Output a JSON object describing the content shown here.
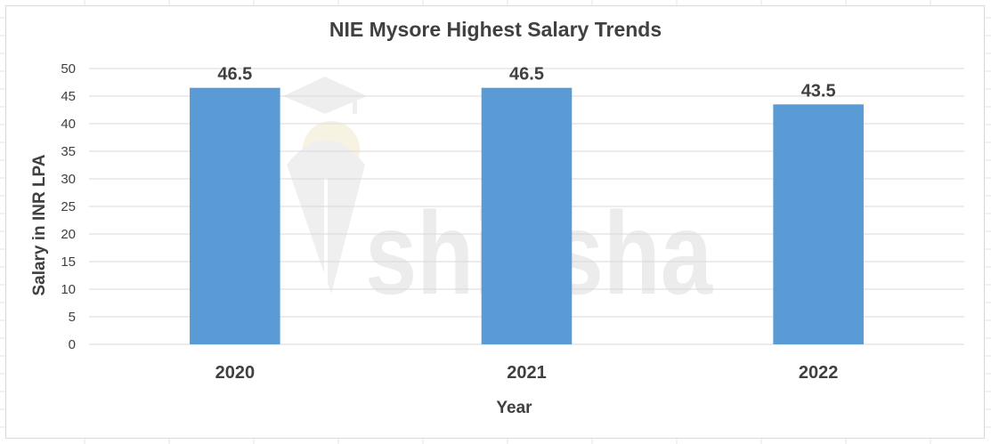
{
  "chart_data": {
    "type": "bar",
    "title": "NIE Mysore Highest Salary Trends",
    "xlabel": "Year",
    "ylabel": "Salary in INR LPA",
    "categories": [
      "2020",
      "2021",
      "2022"
    ],
    "values": [
      46.5,
      46.5,
      43.5
    ],
    "data_labels": [
      "46.5",
      "46.5",
      "43.5"
    ],
    "ylim": [
      0,
      50
    ],
    "yticks": [
      0,
      5,
      10,
      15,
      20,
      25,
      30,
      35,
      40,
      45,
      50
    ],
    "grid": true,
    "legend": "none",
    "bar_color": "#5b9bd5"
  },
  "watermark": {
    "text": "shiksha",
    "color": "#ececec"
  },
  "colors": {
    "text": "#404040",
    "gridline": "#d9d9d9",
    "sheet_grid": "#e6e6e6"
  }
}
